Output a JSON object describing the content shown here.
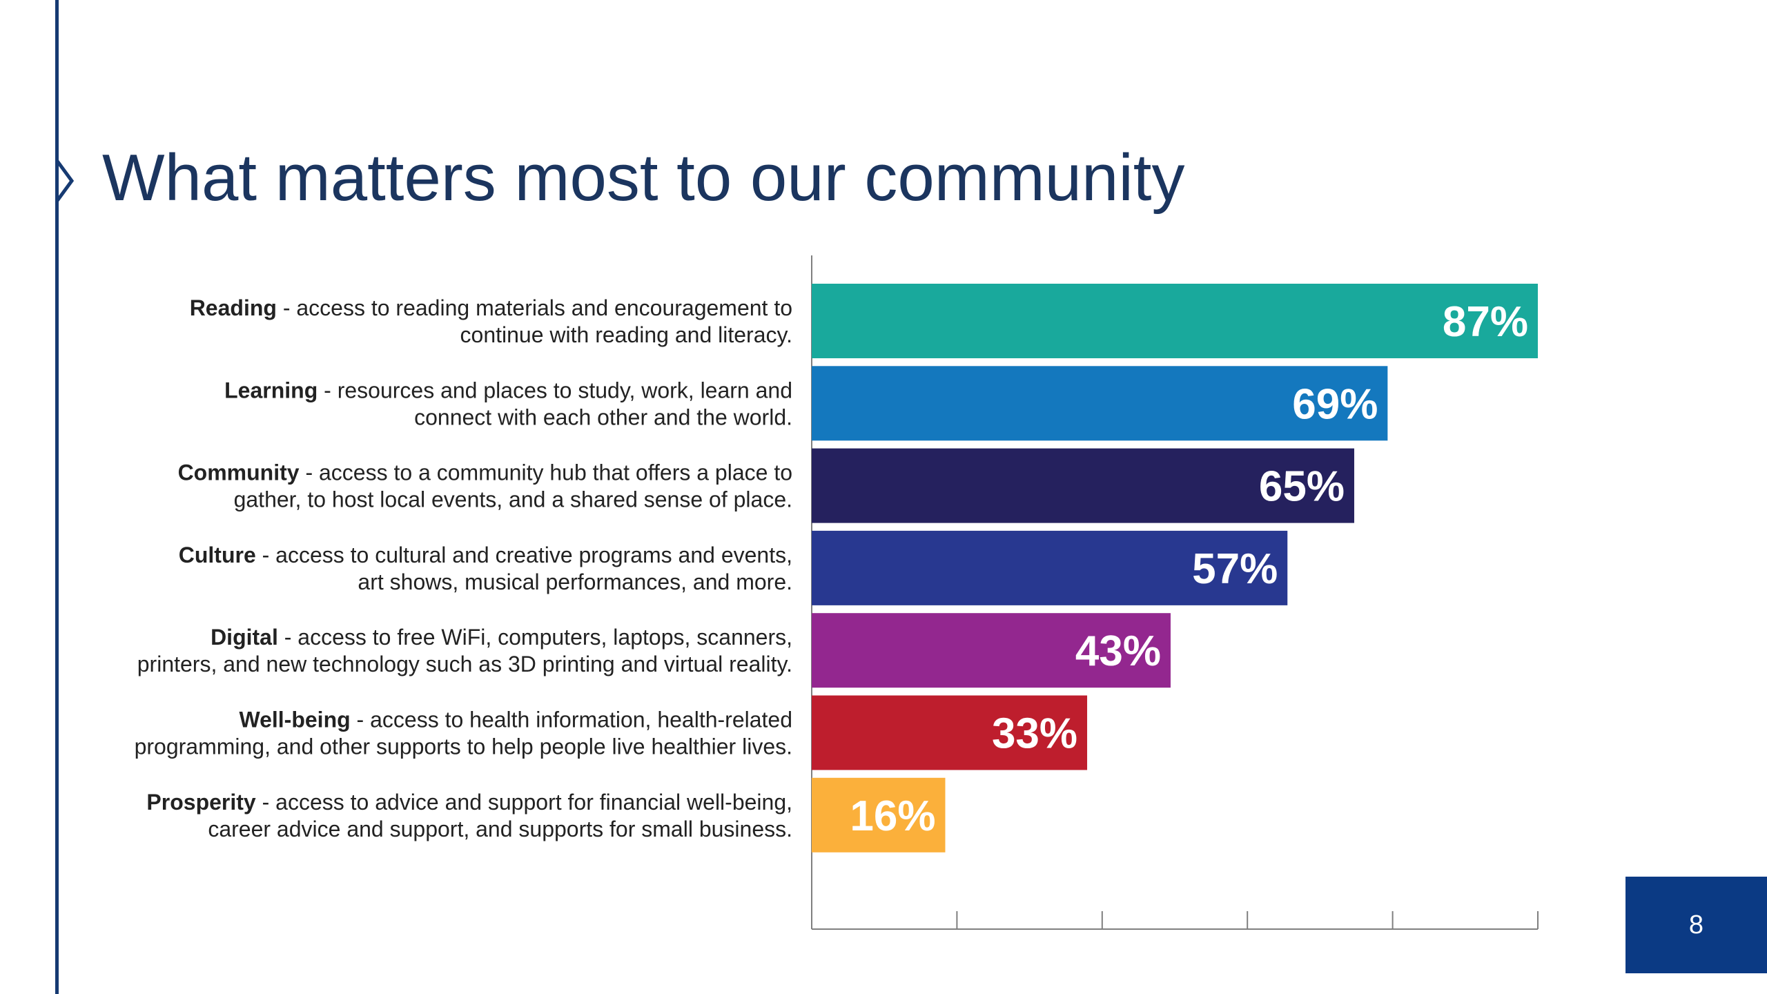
{
  "slide": {
    "title": "What matters most to our community",
    "page_number": "8"
  },
  "colors": {
    "title": "#1b355f",
    "accent_rule": "#163a72",
    "page_box": "#0b3a84"
  },
  "chart_data": {
    "type": "bar",
    "orientation": "horizontal",
    "categories": [
      "Reading",
      "Learning",
      "Community",
      "Culture",
      "Digital",
      "Well-being",
      "Prosperity"
    ],
    "descriptions": [
      [
        "access to reading materials and encouragement to",
        "continue with reading and literacy."
      ],
      [
        "resources and places to study, work, learn and",
        "connect with each other and the world."
      ],
      [
        "access to a community hub that offers a place to",
        "gather, to host local events, and a shared sense of place."
      ],
      [
        "access to cultural and creative programs and events,",
        "art shows, musical performances, and more."
      ],
      [
        "access to free WiFi, computers, laptops, scanners,",
        "printers, and new technology such as 3D printing and virtual reality."
      ],
      [
        "access to health information, health-related",
        "programming, and other supports to help people live healthier lives."
      ],
      [
        "access to advice and support for financial well-being,",
        "career advice and support, and supports for small business."
      ]
    ],
    "values": [
      87,
      69,
      65,
      57,
      43,
      33,
      16
    ],
    "value_labels": [
      "87%",
      "69%",
      "65%",
      "57%",
      "43%",
      "33%",
      "16%"
    ],
    "colors": [
      "#19a99c",
      "#1478be",
      "#25215e",
      "#283890",
      "#93278f",
      "#be1e2d",
      "#fbb03b"
    ],
    "xlim": [
      0,
      87
    ],
    "x_tick_count": 5,
    "grid": false,
    "legend": "none"
  }
}
